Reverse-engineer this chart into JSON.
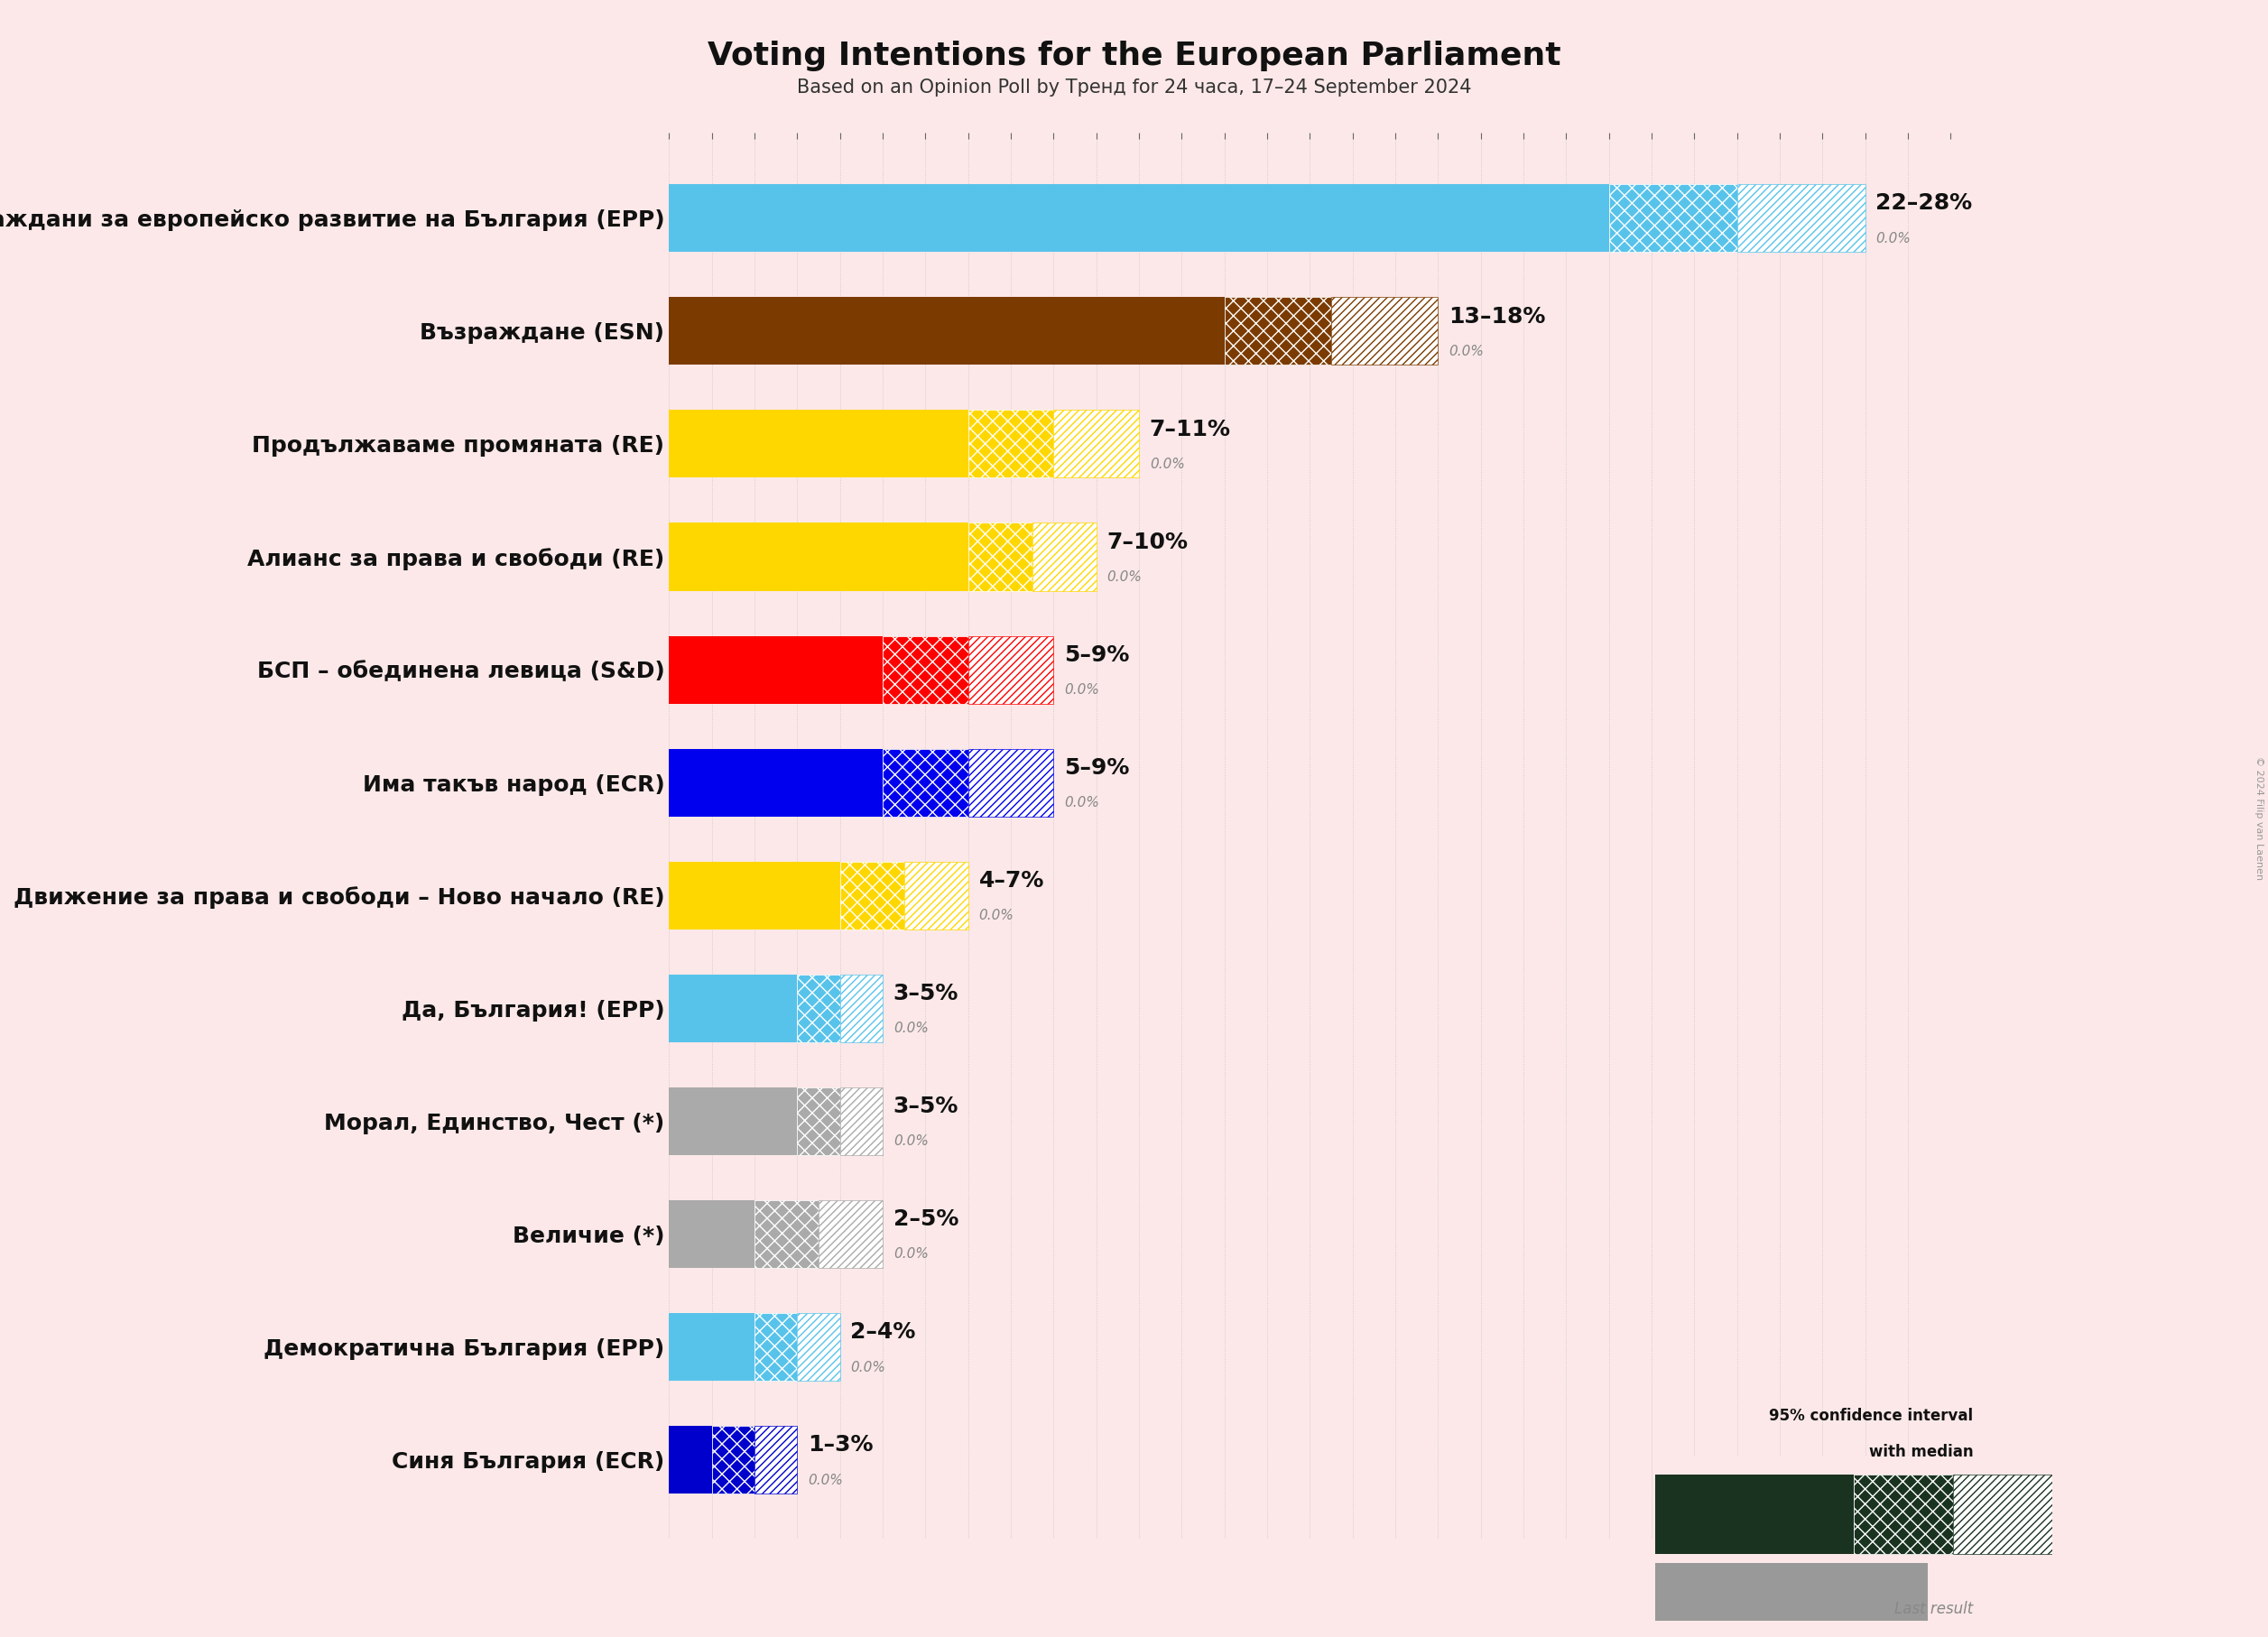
{
  "title": "Voting Intentions for the European Parliament",
  "subtitle": "Based on an Opinion Poll by Тренд for 24 часа, 17–24 September 2024",
  "background_color": "#fce8e8",
  "parties": [
    {
      "name": "Граждани за европейско развитие на България (EPP)",
      "low": 22,
      "high": 28,
      "median": 22,
      "last_result": 0.0,
      "color": "#58C3EA"
    },
    {
      "name": "Възраждане (ESN)",
      "low": 13,
      "high": 18,
      "median": 13,
      "last_result": 0.0,
      "color": "#7B3B00"
    },
    {
      "name": "Продължаваме промяната (RE)",
      "low": 7,
      "high": 11,
      "median": 7,
      "last_result": 0.0,
      "color": "#FFD700"
    },
    {
      "name": "Алианс за права и свободи (RE)",
      "low": 7,
      "high": 10,
      "median": 7,
      "last_result": 0.0,
      "color": "#FFD700"
    },
    {
      "name": "БСП – обединена левица (S&D)",
      "low": 5,
      "high": 9,
      "median": 5,
      "last_result": 0.0,
      "color": "#FF0000"
    },
    {
      "name": "Има такъв народ (ECR)",
      "low": 5,
      "high": 9,
      "median": 5,
      "last_result": 0.0,
      "color": "#0000EE"
    },
    {
      "name": "Движение за права и свободи – Ново начало (RE)",
      "low": 4,
      "high": 7,
      "median": 4,
      "last_result": 0.0,
      "color": "#FFD700"
    },
    {
      "name": "Да, България! (EPP)",
      "low": 3,
      "high": 5,
      "median": 3,
      "last_result": 0.0,
      "color": "#58C3EA"
    },
    {
      "name": "Морал, Единство, Чест (*)",
      "low": 3,
      "high": 5,
      "median": 3,
      "last_result": 0.0,
      "color": "#AAAAAA"
    },
    {
      "name": "Величие (*)",
      "low": 2,
      "high": 5,
      "median": 2,
      "last_result": 0.0,
      "color": "#AAAAAA"
    },
    {
      "name": "Демократична България (EPP)",
      "low": 2,
      "high": 4,
      "median": 2,
      "last_result": 0.0,
      "color": "#58C3EA"
    },
    {
      "name": "Синя България (ECR)",
      "low": 1,
      "high": 3,
      "median": 1,
      "last_result": 0.0,
      "color": "#0000CD"
    }
  ],
  "xlim": [
    0,
    30
  ],
  "grid_color": "#bbbbbb",
  "legend_box_color": "#1a3320",
  "copyright_text": "© 2024 Filip van Laenen",
  "label_fontsize": 18,
  "title_fontsize": 26,
  "subtitle_fontsize": 15,
  "range_fontsize": 18,
  "last_fontsize": 11
}
